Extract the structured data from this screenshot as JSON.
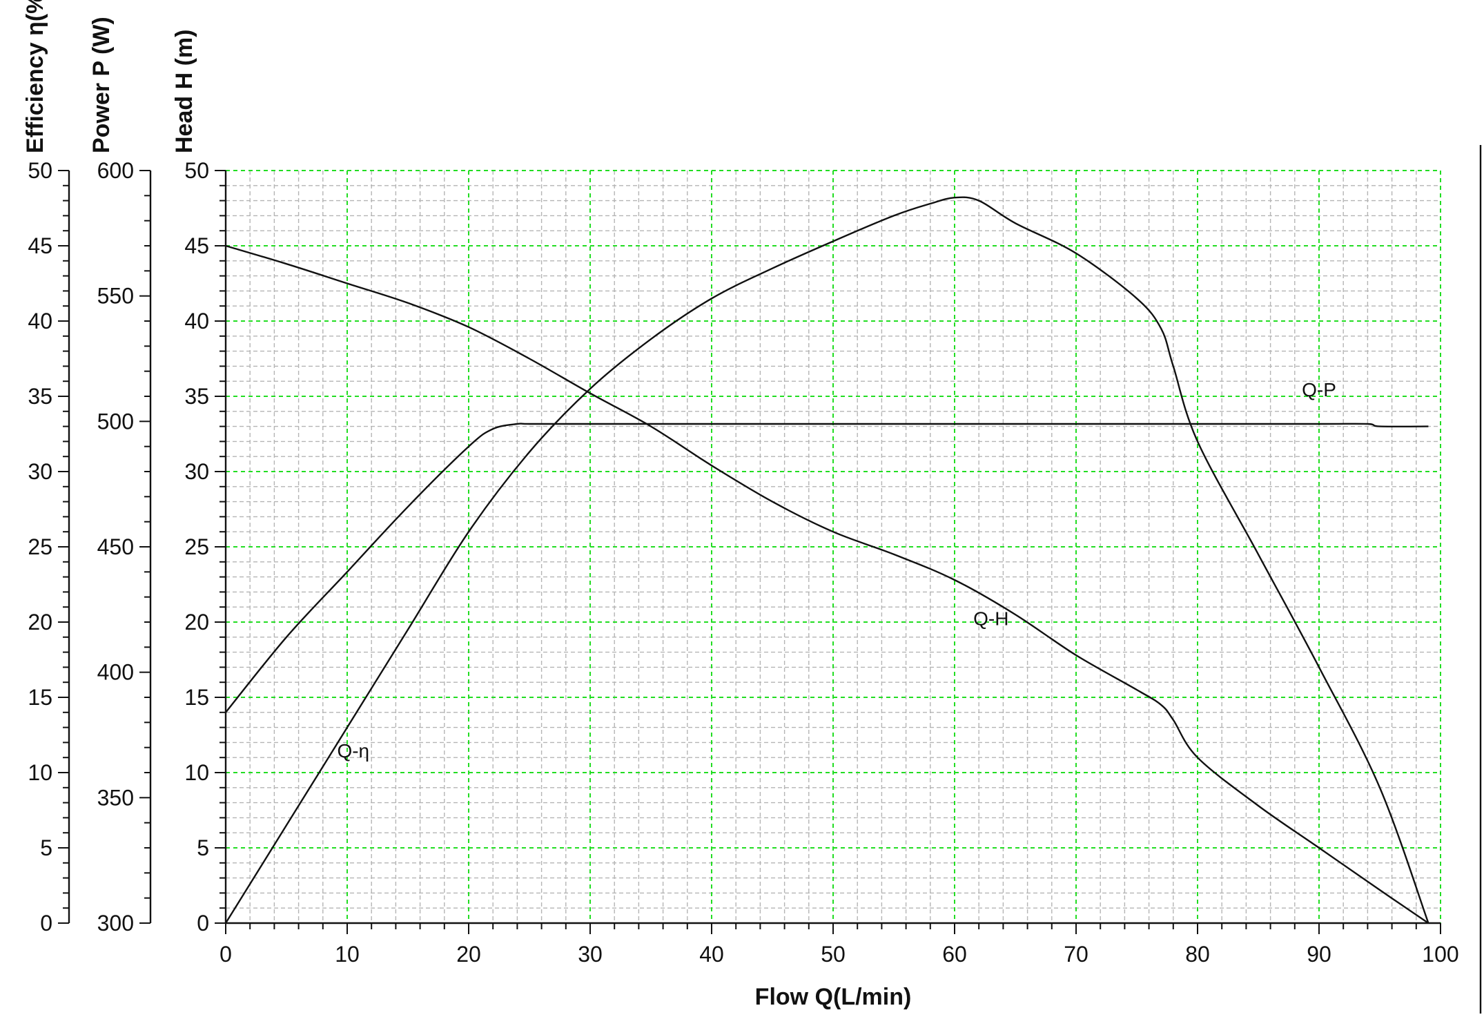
{
  "chart_data": {
    "type": "line",
    "title": "",
    "xlabel": "Flow Q(L/min)",
    "xlim": [
      0,
      100
    ],
    "x_ticks": [
      0,
      10,
      20,
      30,
      40,
      50,
      60,
      70,
      80,
      90,
      100
    ],
    "grid": true,
    "y_axes": [
      {
        "id": "efficiency",
        "label": "Efficiency η(%)",
        "range": [
          0,
          50
        ],
        "ticks": [
          0,
          5,
          10,
          15,
          20,
          25,
          30,
          35,
          40,
          45,
          50
        ]
      },
      {
        "id": "power",
        "label": "Power P (W)",
        "range": [
          300,
          600
        ],
        "ticks": [
          300,
          350,
          400,
          450,
          500,
          550,
          600
        ]
      },
      {
        "id": "head",
        "label": "Head H (m)",
        "range": [
          0,
          50
        ],
        "ticks": [
          0,
          5,
          10,
          15,
          20,
          25,
          30,
          35,
          40,
          45,
          50
        ]
      }
    ],
    "series": [
      {
        "name": "Q-H",
        "axis": "head",
        "x": [
          0,
          5,
          10,
          15,
          20,
          25,
          30,
          35,
          40,
          45,
          50,
          55,
          60,
          65,
          70,
          75,
          77,
          78,
          80,
          85,
          90,
          95,
          99
        ],
        "y": [
          45,
          43.8,
          42.5,
          41.2,
          39.6,
          37.5,
          35.2,
          33,
          30.4,
          28,
          26,
          24.5,
          22.8,
          20.5,
          17.8,
          15.5,
          14.5,
          13.5,
          11,
          7.8,
          5,
          2.2,
          0
        ]
      },
      {
        "name": "Q-P",
        "axis": "power",
        "x": [
          0,
          5,
          10,
          15,
          20,
          22,
          24,
          25,
          30,
          40,
          50,
          60,
          70,
          80,
          90,
          94,
          95,
          99
        ],
        "y": [
          384,
          414,
          440,
          466,
          490,
          497,
          499,
          499,
          499,
          499,
          499,
          499,
          499,
          499,
          499,
          499,
          498,
          498
        ]
      },
      {
        "name": "Q-η",
        "axis": "efficiency",
        "x": [
          0,
          5,
          10,
          15,
          20,
          25,
          30,
          35,
          40,
          45,
          50,
          55,
          58,
          60,
          62,
          65,
          70,
          75,
          77,
          78,
          80,
          85,
          90,
          95,
          99
        ],
        "y": [
          0,
          6.5,
          13,
          19.5,
          26,
          31.3,
          35.5,
          38.8,
          41.5,
          43.5,
          45.3,
          47,
          47.8,
          48.2,
          48,
          46.5,
          44.5,
          41.5,
          39.5,
          37,
          32,
          24.5,
          17,
          9,
          0
        ]
      }
    ],
    "curve_labels": [
      {
        "text": "Q-H",
        "series": "Q-H",
        "at_x": 63,
        "at_y": 19.8
      },
      {
        "text": "Q-P",
        "series": "Q-P",
        "at_x": 90,
        "at_y": 35
      },
      {
        "text": "Q-η",
        "series": "Q-η",
        "at_x": 10.5,
        "at_y": 11
      }
    ],
    "colors": {
      "major_grid": "#22dd22",
      "minor_grid": "#b4b4b4",
      "curve": "#111111",
      "axis": "#111111"
    }
  }
}
